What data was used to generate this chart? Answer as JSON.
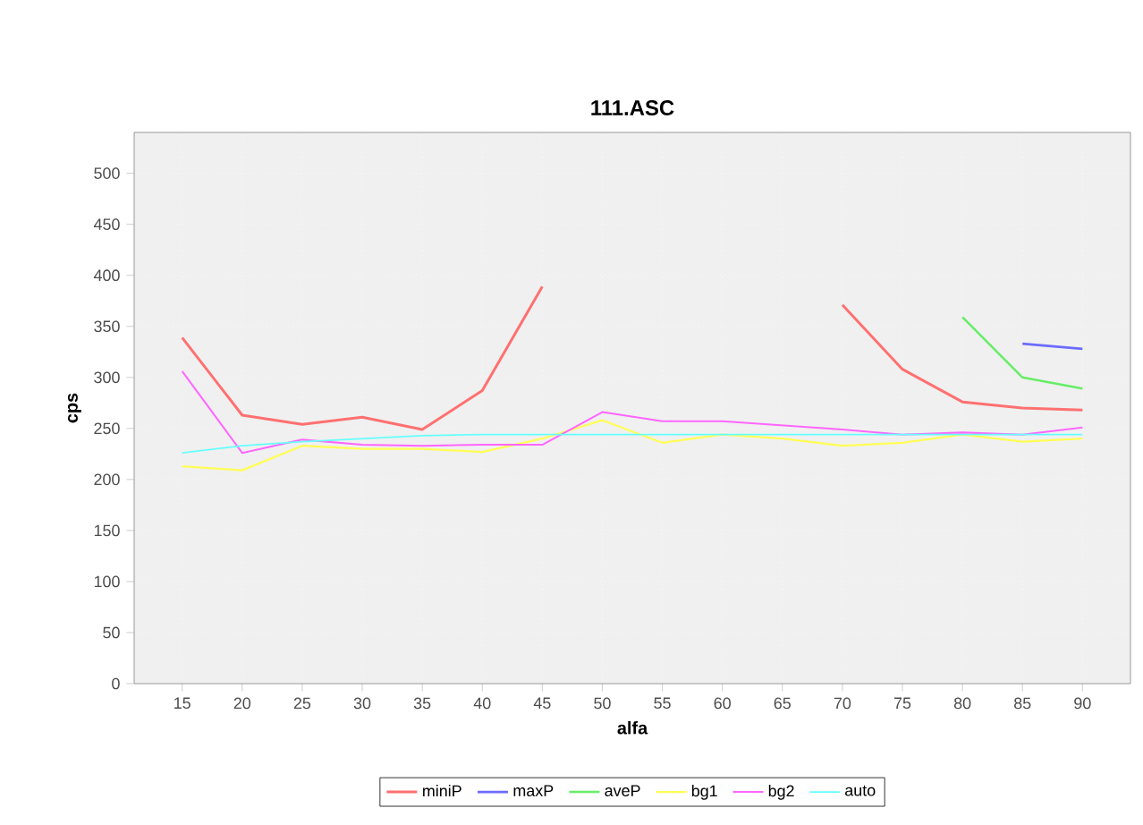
{
  "chart_data": {
    "type": "line",
    "title": "111.ASC",
    "xlabel": "alfa",
    "ylabel": "cps",
    "x": [
      15,
      20,
      25,
      30,
      35,
      40,
      45,
      50,
      55,
      60,
      65,
      70,
      75,
      80,
      85,
      90
    ],
    "xlim": [
      11,
      94
    ],
    "xticks": [
      15,
      20,
      25,
      30,
      35,
      40,
      45,
      50,
      55,
      60,
      65,
      70,
      75,
      80,
      85,
      90
    ],
    "ylim": [
      0,
      540
    ],
    "yticks": [
      0,
      50,
      100,
      150,
      200,
      250,
      300,
      350,
      400,
      450,
      500
    ],
    "grid": true,
    "legend": "bottom",
    "marker": "none",
    "line_style": "solid",
    "series": [
      {
        "name": "miniP",
        "color": "#ff7070",
        "values": [
          339,
          263,
          254,
          261,
          249,
          287,
          389,
          null,
          null,
          null,
          null,
          371,
          308,
          276,
          270,
          268
        ]
      },
      {
        "name": "maxP",
        "color": "#6b6bff",
        "values": [
          null,
          null,
          null,
          null,
          null,
          null,
          null,
          null,
          null,
          null,
          null,
          null,
          null,
          null,
          333,
          328
        ]
      },
      {
        "name": "aveP",
        "color": "#66ee66",
        "values": [
          null,
          null,
          null,
          null,
          null,
          null,
          null,
          null,
          null,
          null,
          null,
          null,
          null,
          359,
          300,
          289
        ]
      },
      {
        "name": "bg1",
        "color": "#ffff55",
        "values": [
          213,
          209,
          233,
          230,
          230,
          227,
          240,
          258,
          236,
          244,
          240,
          233,
          236,
          244,
          237,
          240
        ]
      },
      {
        "name": "bg2",
        "color": "#ff66ff",
        "values": [
          306,
          226,
          239,
          234,
          233,
          234,
          234,
          266,
          257,
          257,
          253,
          249,
          244,
          246,
          244,
          251
        ]
      },
      {
        "name": "auto",
        "color": "#66ffff",
        "values": [
          226,
          233,
          237,
          240,
          243,
          244,
          244,
          244,
          244,
          244,
          244,
          244,
          244,
          244,
          244,
          244
        ]
      }
    ]
  }
}
